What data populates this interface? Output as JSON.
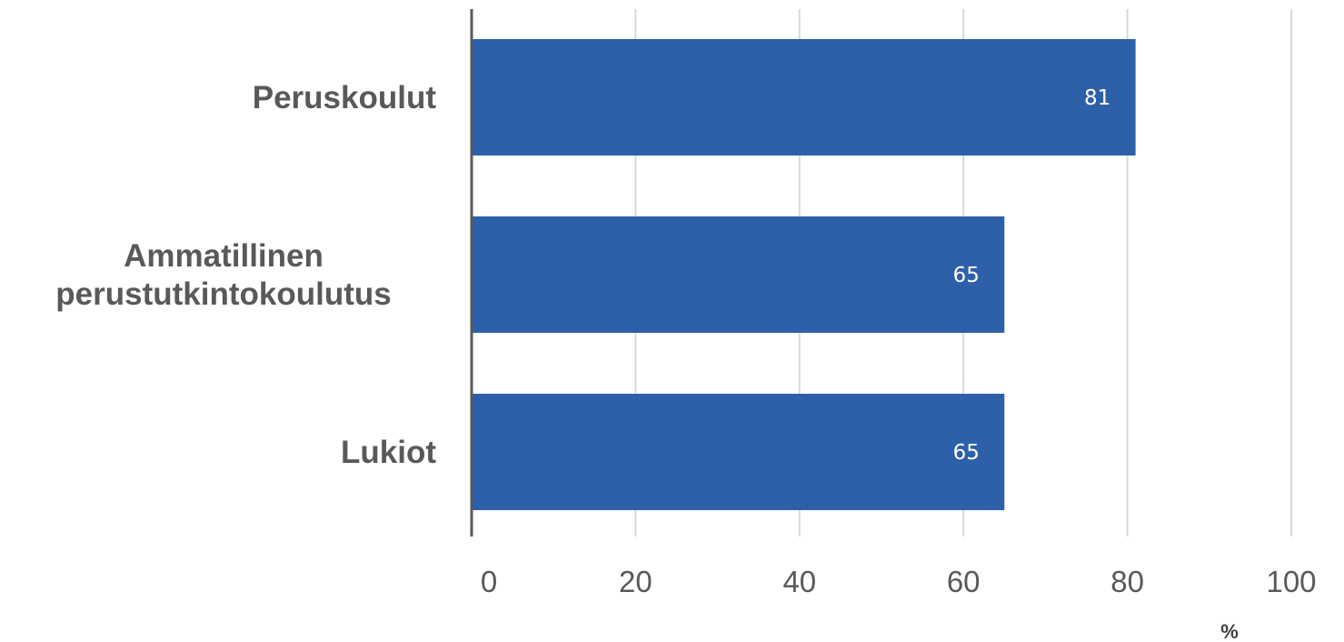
{
  "chart_data": {
    "type": "bar",
    "orientation": "horizontal",
    "categories": [
      [
        "Peruskoulut"
      ],
      [
        "Ammatillinen",
        "perustutkintokoulutus"
      ],
      [
        "Lukiot"
      ]
    ],
    "values": [
      81,
      65,
      65
    ],
    "data_labels": [
      "81",
      "65",
      "65"
    ],
    "xlim": [
      0,
      100
    ],
    "xticks": [
      0,
      20,
      40,
      60,
      80,
      100
    ],
    "xlabel": "%",
    "grid": true,
    "legend": "none",
    "colors": {
      "bar": "#2e60aa",
      "grid": "#d9d9d9",
      "axis": "#595959",
      "label": "#595959",
      "data_label": "#ffffff"
    }
  }
}
